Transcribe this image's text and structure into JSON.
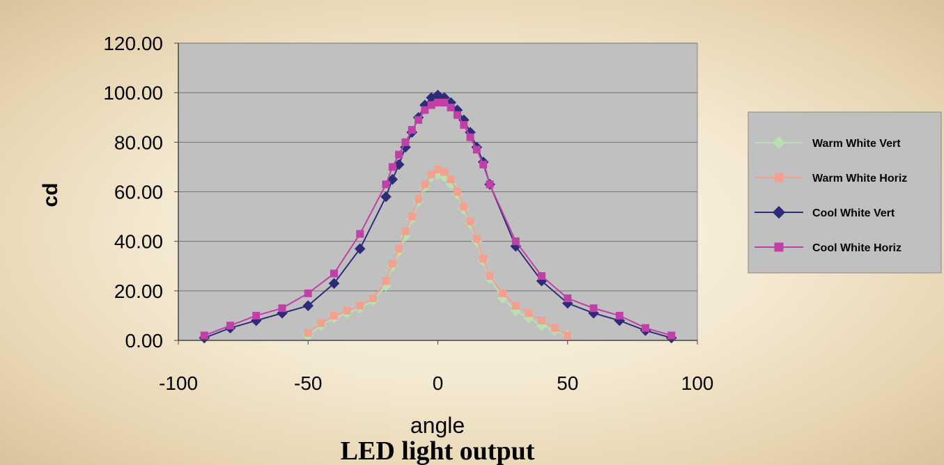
{
  "chart_data": {
    "type": "line",
    "title": "LED light output",
    "xlabel": "angle",
    "ylabel": "cd",
    "xlim": [
      -100,
      100
    ],
    "ylim": [
      0,
      120
    ],
    "xticks": [
      "-100",
      "-50",
      "0",
      "50",
      "100"
    ],
    "yticks": [
      "0.00",
      "20.00",
      "40.00",
      "60.00",
      "80.00",
      "100.00",
      "120.00"
    ],
    "grid": true,
    "legend_position": "right",
    "series": [
      {
        "name": "Warm White Vert",
        "color": "#b8e0b0",
        "marker": "diamond",
        "x": [
          -50,
          -45,
          -40,
          -35,
          -30,
          -25,
          -20,
          -17.5,
          -15,
          -12.5,
          -10,
          -7.5,
          -5,
          -2.5,
          0,
          2.5,
          5,
          7.5,
          10,
          12.5,
          15,
          17.5,
          20,
          25,
          30,
          35,
          40,
          45,
          50
        ],
        "y": [
          2,
          6,
          9,
          11,
          13,
          16,
          22,
          30,
          36,
          42,
          49,
          56,
          62,
          66,
          67,
          66,
          63,
          59,
          53,
          47,
          40,
          32,
          25,
          17,
          12,
          9,
          6,
          4,
          2
        ]
      },
      {
        "name": "Warm White Horiz",
        "color": "#f4a090",
        "marker": "square",
        "x": [
          -50,
          -45,
          -40,
          -35,
          -30,
          -25,
          -20,
          -17.5,
          -15,
          -12.5,
          -10,
          -7.5,
          -5,
          -2.5,
          0,
          2.5,
          5,
          7.5,
          10,
          12.5,
          15,
          17.5,
          20,
          25,
          30,
          35,
          40,
          45,
          50
        ],
        "y": [
          3,
          7,
          10,
          12,
          14,
          17,
          24,
          31,
          37,
          44,
          50,
          57,
          63,
          67,
          69,
          68,
          65,
          60,
          54,
          48,
          41,
          33,
          26,
          19,
          14,
          11,
          8,
          5,
          2
        ]
      },
      {
        "name": "Cool White Vert",
        "color": "#2c2c7a",
        "marker": "diamond",
        "x": [
          -90,
          -80,
          -70,
          -60,
          -50,
          -40,
          -30,
          -20,
          -17.5,
          -15,
          -12.5,
          -10,
          -7.5,
          -5,
          -2.5,
          0,
          2.5,
          5,
          7.5,
          10,
          12.5,
          15,
          17.5,
          20,
          30,
          40,
          50,
          60,
          70,
          80,
          90
        ],
        "y": [
          1,
          5,
          8,
          11,
          14,
          23,
          37,
          58,
          65,
          71,
          78,
          84,
          90,
          95,
          98,
          99,
          98,
          96,
          93,
          89,
          84,
          78,
          72,
          63,
          38,
          24,
          15,
          11,
          8,
          4,
          1
        ]
      },
      {
        "name": "Cool White Horiz",
        "color": "#c040a8",
        "marker": "square",
        "x": [
          -90,
          -80,
          -70,
          -60,
          -50,
          -40,
          -30,
          -20,
          -17.5,
          -15,
          -12.5,
          -10,
          -7.5,
          -5,
          -2.5,
          0,
          2.5,
          5,
          7.5,
          10,
          12.5,
          15,
          17.5,
          20,
          30,
          40,
          50,
          60,
          70,
          80,
          90
        ],
        "y": [
          2,
          6,
          10,
          13,
          19,
          27,
          43,
          63,
          70,
          75,
          80,
          85,
          89,
          93,
          95,
          96,
          96,
          94,
          91,
          87,
          82,
          77,
          71,
          63,
          40,
          26,
          17,
          13,
          10,
          5,
          2
        ]
      }
    ]
  }
}
